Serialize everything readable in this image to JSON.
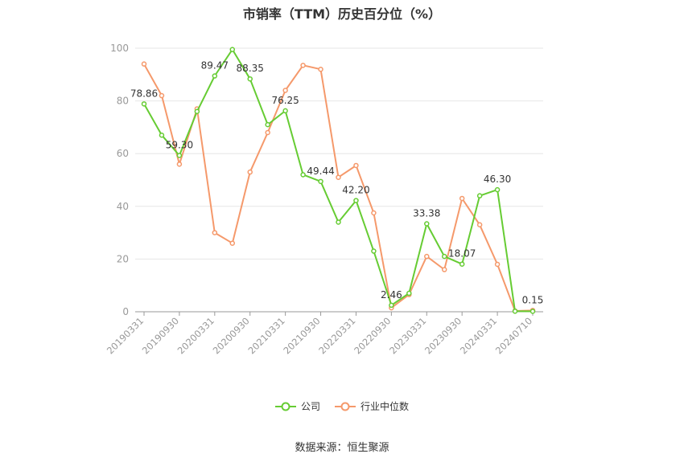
{
  "chart_data": {
    "type": "line",
    "title": "市销率（TTM）历史百分位（%）",
    "xlabel": "",
    "ylabel": "",
    "ylim": [
      0,
      100
    ],
    "yticks": [
      0,
      20,
      40,
      60,
      80,
      100
    ],
    "grid": true,
    "legend_position": "bottom",
    "x_tick_labels": [
      "20190331",
      "20190930",
      "20200331",
      "20200930",
      "20210331",
      "20210930",
      "20220331",
      "20220930",
      "20230331",
      "20230930",
      "20240331",
      "20240710"
    ],
    "x": [
      "20190331",
      "20190630",
      "20190930",
      "20191231",
      "20200331",
      "20200630",
      "20200930",
      "20201231",
      "20210331",
      "20210630",
      "20210930",
      "20211231",
      "20220331",
      "20220630",
      "20220930",
      "20221231",
      "20230331",
      "20230630",
      "20230930",
      "20231231",
      "20240331",
      "20240630",
      "20240710"
    ],
    "series": [
      {
        "name": "公司",
        "color": "#66cc33",
        "values": [
          78.86,
          67,
          59.3,
          76,
          89.47,
          99.5,
          88.35,
          71,
          76.25,
          52,
          49.44,
          34,
          42.2,
          23,
          2.46,
          7,
          33.38,
          21,
          18.07,
          44,
          46.3,
          0.2,
          0.15
        ],
        "labels": {
          "0": "78.86",
          "2": "59.30",
          "4": "89.47",
          "6": "88.35",
          "8": "76.25",
          "10": "49.44",
          "12": "42.20",
          "14": "2.46",
          "16": "33.38",
          "18": "18.07",
          "20": "46.30",
          "22": "0.15"
        }
      },
      {
        "name": "行业中位数",
        "color": "#f5996b",
        "values": [
          94,
          82,
          56,
          77,
          30,
          26,
          53,
          68,
          84,
          93.5,
          92,
          51,
          55.5,
          37.5,
          1.5,
          6.5,
          21,
          16,
          43,
          33,
          18,
          0.3,
          0.5
        ]
      }
    ]
  },
  "source": "数据来源：恒生聚源"
}
